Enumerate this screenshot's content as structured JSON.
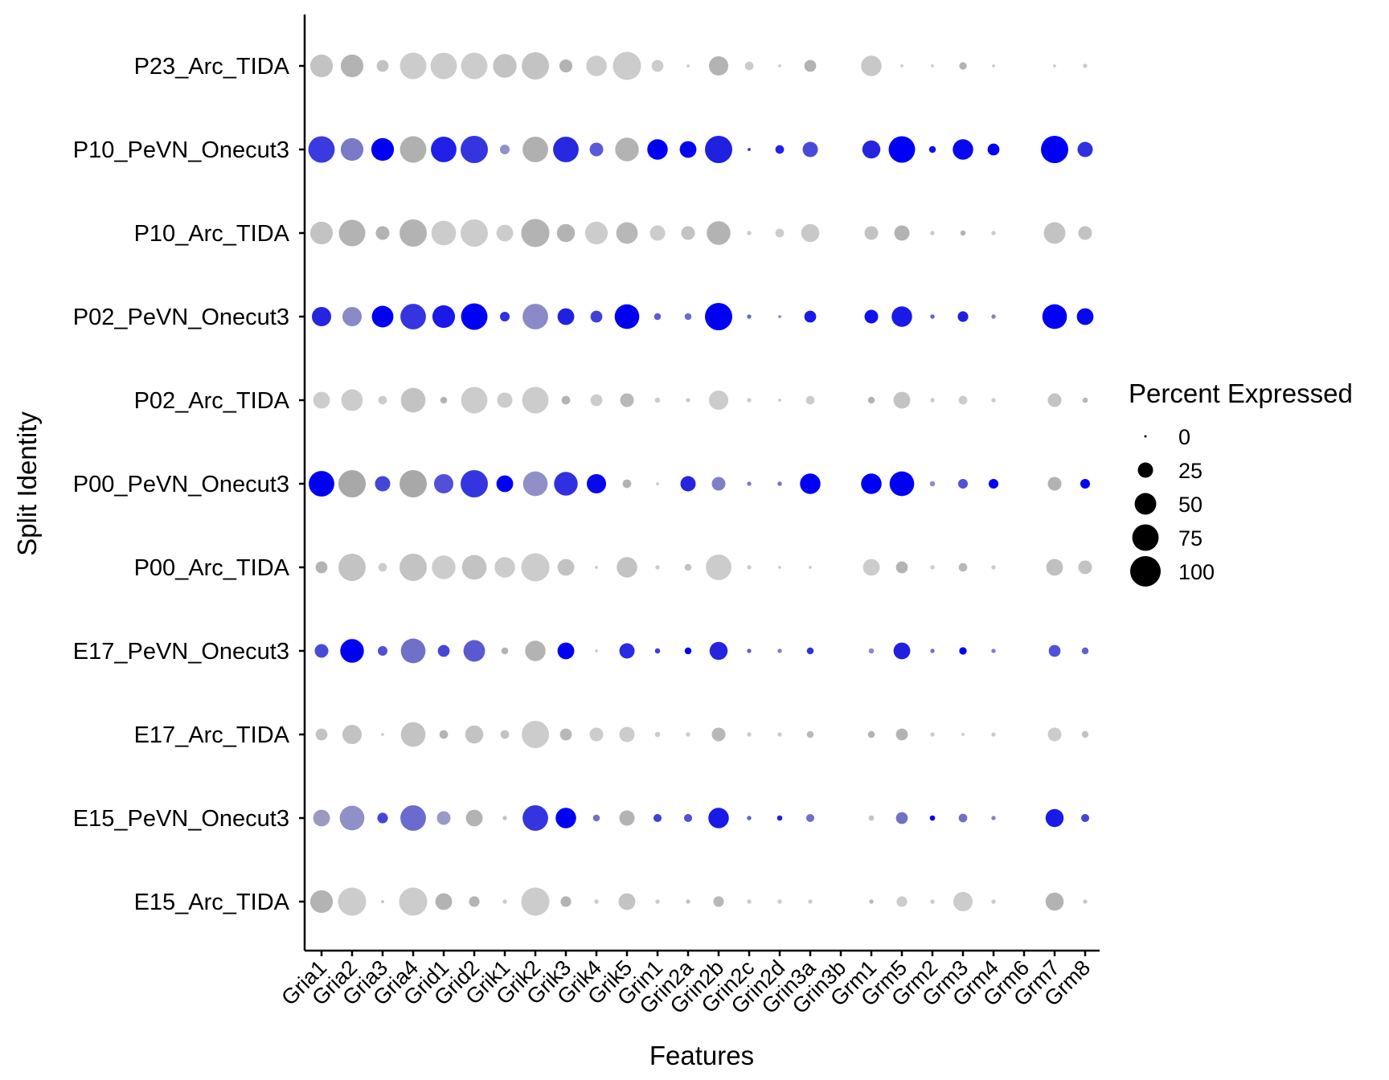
{
  "chart_data": {
    "type": "dotplot",
    "xlabel": "Features",
    "ylabel": "Split Identity",
    "features": [
      "Gria1",
      "Gria2",
      "Gria3",
      "Gria4",
      "Grid1",
      "Grid2",
      "Grik1",
      "Grik2",
      "Grik3",
      "Grik4",
      "Grik5",
      "Grin1",
      "Grin2a",
      "Grin2b",
      "Grin2c",
      "Grin2d",
      "Grin3a",
      "Grin3b",
      "Grm1",
      "Grm5",
      "Grm2",
      "Grm3",
      "Grm4",
      "Grm6",
      "Grm7",
      "Grm8"
    ],
    "identities": [
      "P23_Arc_TIDA",
      "P10_PeVN_Onecut3",
      "P10_Arc_TIDA",
      "P02_PeVN_Onecut3",
      "P02_Arc_TIDA",
      "P00_PeVN_Onecut3",
      "P00_Arc_TIDA",
      "E17_PeVN_Onecut3",
      "E17_Arc_TIDA",
      "E15_PeVN_Onecut3",
      "E15_Arc_TIDA"
    ],
    "percent_expressed": [
      [
        55,
        55,
        15,
        75,
        75,
        75,
        60,
        80,
        18,
        45,
        85,
        15,
        1,
        40,
        8,
        1,
        15,
        0,
        45,
        1,
        1,
        6,
        1,
        0,
        1,
        2
      ],
      [
        75,
        55,
        55,
        75,
        70,
        80,
        10,
        70,
        70,
        20,
        60,
        45,
        30,
        80,
        1,
        8,
        25,
        0,
        35,
        75,
        5,
        45,
        15,
        0,
        80,
        25
      ],
      [
        55,
        75,
        20,
        80,
        65,
        80,
        30,
        85,
        35,
        55,
        50,
        25,
        20,
        60,
        2,
        8,
        35,
        0,
        20,
        25,
        2,
        3,
        2,
        0,
        50,
        20
      ],
      [
        40,
        40,
        50,
        70,
        55,
        75,
        10,
        70,
        30,
        15,
        65,
        5,
        5,
        80,
        2,
        1,
        15,
        0,
        20,
        45,
        2,
        12,
        2,
        0,
        65,
        30
      ],
      [
        30,
        50,
        8,
        65,
        5,
        75,
        25,
        75,
        8,
        15,
        20,
        3,
        2,
        40,
        2,
        1,
        8,
        0,
        5,
        30,
        2,
        8,
        2,
        0,
        20,
        3
      ],
      [
        70,
        80,
        25,
        80,
        40,
        80,
        30,
        65,
        60,
        40,
        8,
        1,
        25,
        20,
        2,
        2,
        45,
        0,
        45,
        65,
        3,
        10,
        10,
        0,
        20,
        10
      ],
      [
        15,
        80,
        8,
        80,
        60,
        65,
        45,
        85,
        30,
        1,
        45,
        2,
        5,
        70,
        2,
        1,
        1,
        0,
        30,
        15,
        2,
        8,
        2,
        0,
        30,
        20
      ],
      [
        20,
        60,
        10,
        65,
        15,
        50,
        5,
        45,
        30,
        1,
        25,
        3,
        5,
        35,
        2,
        2,
        5,
        0,
        3,
        30,
        2,
        6,
        2,
        0,
        15,
        5
      ],
      [
        15,
        40,
        1,
        65,
        8,
        35,
        8,
        80,
        15,
        20,
        25,
        3,
        2,
        20,
        2,
        2,
        5,
        0,
        5,
        15,
        2,
        1,
        2,
        0,
        20,
        5
      ],
      [
        30,
        65,
        12,
        70,
        20,
        30,
        2,
        70,
        45,
        5,
        25,
        7,
        7,
        45,
        2,
        3,
        7,
        0,
        3,
        15,
        3,
        8,
        2,
        0,
        35,
        7
      ],
      [
        55,
        85,
        1,
        85,
        30,
        12,
        2,
        85,
        12,
        2,
        30,
        2,
        2,
        12,
        2,
        2,
        2,
        0,
        2,
        12,
        2,
        40,
        2,
        0,
        35,
        2
      ]
    ],
    "average_expression_color": [
      [
        "#c3c3c3",
        "#b3b3b3",
        "#c3c3c3",
        "#cccccc",
        "#cccccc",
        "#cccccc",
        "#c3c3c3",
        "#c3c3c3",
        "#b3b3b3",
        "#cccccc",
        "#cccccc",
        "#cccccc",
        "#cccccc",
        "#b3b3b3",
        "#cccccc",
        "#cccccc",
        "#b3b3b3",
        "#cccccc",
        "#c8c8c8",
        "#cccccc",
        "#cccccc",
        "#b3b3b3",
        "#cccccc",
        "#cccccc",
        "#cccccc",
        "#cccccc"
      ],
      [
        "#3a3ae0",
        "#7a7ac8",
        "#0000f5",
        "#b0b0b0",
        "#2020e8",
        "#3535e0",
        "#9090c8",
        "#b0b0b0",
        "#2828e0",
        "#5a5ad8",
        "#b3b3b3",
        "#0000f5",
        "#0505f0",
        "#2020e0",
        "#3030e8",
        "#2020f0",
        "#4a4ad8",
        "#cccccc",
        "#2525e0",
        "#0000f5",
        "#1010f0",
        "#0808f0",
        "#0000f5",
        "#cccccc",
        "#0000f5",
        "#3030e0"
      ],
      [
        "#c3c3c3",
        "#b3b3b3",
        "#b3b3b3",
        "#b3b3b3",
        "#cccccc",
        "#cccccc",
        "#cccccc",
        "#b3b3b3",
        "#b3b3b3",
        "#cccccc",
        "#b8b8b8",
        "#cccccc",
        "#c3c3c3",
        "#b3b3b3",
        "#cccccc",
        "#cccccc",
        "#c8c8c8",
        "#cccccc",
        "#c3c3c3",
        "#b3b3b3",
        "#cccccc",
        "#b3b3b3",
        "#cccccc",
        "#cccccc",
        "#c3c3c3",
        "#c3c3c3"
      ],
      [
        "#2525e0",
        "#8a8ac8",
        "#0000f5",
        "#3535e0",
        "#1a1ae8",
        "#0000f5",
        "#3030e0",
        "#8a8ac8",
        "#2020e0",
        "#4040d8",
        "#0000f5",
        "#5a5ad8",
        "#6a6ad0",
        "#0000f5",
        "#6a6ad0",
        "#8a8ad0",
        "#1a1ae8",
        "#cccccc",
        "#1010f0",
        "#1a1ae8",
        "#6060d8",
        "#2020e0",
        "#8080c8",
        "#cccccc",
        "#0000f5",
        "#0808f0"
      ],
      [
        "#cccccc",
        "#cccccc",
        "#cccccc",
        "#c3c3c3",
        "#b3b3b3",
        "#cccccc",
        "#cccccc",
        "#cccccc",
        "#b3b3b3",
        "#cccccc",
        "#b8b8b8",
        "#cccccc",
        "#cccccc",
        "#cccccc",
        "#cccccc",
        "#cccccc",
        "#cccccc",
        "#cccccc",
        "#b3b3b3",
        "#c3c3c3",
        "#cccccc",
        "#cccccc",
        "#cccccc",
        "#cccccc",
        "#c3c3c3",
        "#b8b8b8"
      ],
      [
        "#0000f5",
        "#a8a8a8",
        "#4545d8",
        "#a8a8a8",
        "#5050d8",
        "#3535e0",
        "#0000f5",
        "#9090c8",
        "#3030e0",
        "#0808f0",
        "#b3b3b3",
        "#cccccc",
        "#2525e0",
        "#8080c8",
        "#7a7ad0",
        "#7070d0",
        "#0000f5",
        "#cccccc",
        "#0000f5",
        "#0000f5",
        "#8a8ad0",
        "#5050d8",
        "#0000f5",
        "#cccccc",
        "#b3b3b3",
        "#0000f5"
      ],
      [
        "#b3b3b3",
        "#c3c3c3",
        "#cccccc",
        "#c3c3c3",
        "#cccccc",
        "#c3c3c3",
        "#cccccc",
        "#cccccc",
        "#c3c3c3",
        "#cccccc",
        "#c3c3c3",
        "#cccccc",
        "#c3c3c3",
        "#cccccc",
        "#cccccc",
        "#cccccc",
        "#cccccc",
        "#cccccc",
        "#cccccc",
        "#b3b3b3",
        "#cccccc",
        "#b8b8b8",
        "#cccccc",
        "#cccccc",
        "#c0c0c0",
        "#c3c3c3"
      ],
      [
        "#4a4ad8",
        "#0000f5",
        "#5050d8",
        "#7070c8",
        "#4545d8",
        "#5a5ad0",
        "#b3b3b3",
        "#b3b3b3",
        "#0000f5",
        "#cccccc",
        "#2a2ae0",
        "#4040d8",
        "#0000f5",
        "#2525e0",
        "#6060d8",
        "#8080c8",
        "#3030e0",
        "#cccccc",
        "#8a8ac8",
        "#2020e0",
        "#7070d0",
        "#0000f5",
        "#8080c8",
        "#cccccc",
        "#5050d8",
        "#6060d0"
      ],
      [
        "#c3c3c3",
        "#c3c3c3",
        "#cccccc",
        "#c3c3c3",
        "#b3b3b3",
        "#c3c3c3",
        "#c3c3c3",
        "#cccccc",
        "#b8b8b8",
        "#cccccc",
        "#cccccc",
        "#cccccc",
        "#cccccc",
        "#b8b8b8",
        "#cccccc",
        "#cccccc",
        "#b8b8b8",
        "#cccccc",
        "#b3b3b3",
        "#b3b3b3",
        "#cccccc",
        "#cccccc",
        "#cccccc",
        "#cccccc",
        "#cccccc",
        "#c3c3c3"
      ],
      [
        "#9a9ac0",
        "#9090c8",
        "#4545d8",
        "#6a6ad0",
        "#9a9ac8",
        "#b3b3b3",
        "#c3c3c3",
        "#3535e0",
        "#0000f5",
        "#7070d0",
        "#b3b3b3",
        "#4040d8",
        "#5050d8",
        "#1a1ae8",
        "#6060d8",
        "#2020e8",
        "#7070c8",
        "#cccccc",
        "#c3c3c3",
        "#7070c8",
        "#0000f5",
        "#7070c8",
        "#8080c8",
        "#cccccc",
        "#1a1ae8",
        "#4545d8"
      ],
      [
        "#b3b3b3",
        "#cccccc",
        "#c3c3c3",
        "#cccccc",
        "#b3b3b3",
        "#b3b3b3",
        "#cccccc",
        "#cccccc",
        "#b3b3b3",
        "#cccccc",
        "#c3c3c3",
        "#cccccc",
        "#c3c3c3",
        "#b8b8b8",
        "#cccccc",
        "#cccccc",
        "#cccccc",
        "#cccccc",
        "#b8b8b8",
        "#cccccc",
        "#cccccc",
        "#cccccc",
        "#cccccc",
        "#cccccc",
        "#b3b3b3",
        "#c8c8c8"
      ]
    ],
    "size_legend": {
      "title": "Percent Expressed",
      "values": [
        0,
        25,
        50,
        75,
        100
      ],
      "labels": [
        "0",
        "25",
        "50",
        "75",
        "100"
      ]
    },
    "grid": false
  }
}
